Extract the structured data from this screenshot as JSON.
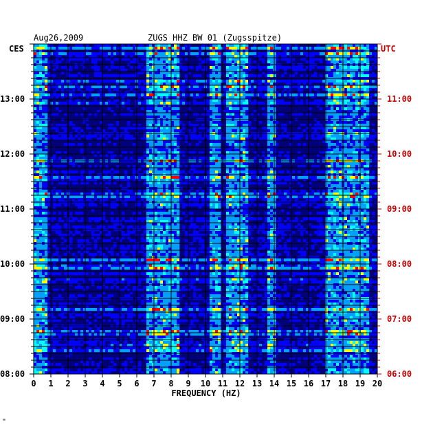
{
  "header": {
    "date": "Aug26,2009",
    "station_title": "ZUGS HHZ BW 01 (Zugsspitze)"
  },
  "labels": {
    "left_timezone": "CES",
    "right_timezone": "UTC",
    "footer_mark": "\""
  },
  "colors": {
    "background": "#ffffff",
    "plot_base": "#00007a",
    "grid": "#000000",
    "left_text": "#000000",
    "right_text": "#cc0000"
  },
  "chart_data": {
    "type": "heatmap",
    "title": "ZUGS HHZ BW 01 (Zugsspitze)",
    "subtitle": "Aug26,2009",
    "xlabel": "FREQUENCY (HZ)",
    "ylabel_left": "CES",
    "ylabel_right": "UTC",
    "xlim": [
      0,
      20
    ],
    "x_ticks": [
      "0",
      "1",
      "2",
      "3",
      "4",
      "5",
      "6",
      "7",
      "8",
      "9",
      "10",
      "11",
      "12",
      "13",
      "14",
      "15",
      "16",
      "17",
      "18",
      "19",
      "20"
    ],
    "y_ticks_left": [
      "13:00",
      "12:00",
      "11:00",
      "10:00",
      "09:00",
      "08:00"
    ],
    "y_ticks_right": [
      "11:00",
      "10:00",
      "09:00",
      "08:00",
      "07:00",
      "06:00"
    ],
    "time_range_local": [
      "08:00",
      "13:50"
    ],
    "grid": true,
    "colormap": [
      "#000080",
      "#0000ff",
      "#00a0ff",
      "#00ffff",
      "#ffff00",
      "#ff0000"
    ],
    "energy_bands_hz": [
      {
        "from": 0.0,
        "to": 0.8
      },
      {
        "from": 6.5,
        "to": 8.5
      },
      {
        "from": 10.3,
        "to": 10.9
      },
      {
        "from": 11.2,
        "to": 12.4
      },
      {
        "from": 13.6,
        "to": 14.0
      },
      {
        "from": 17.0,
        "to": 19.5
      }
    ]
  }
}
